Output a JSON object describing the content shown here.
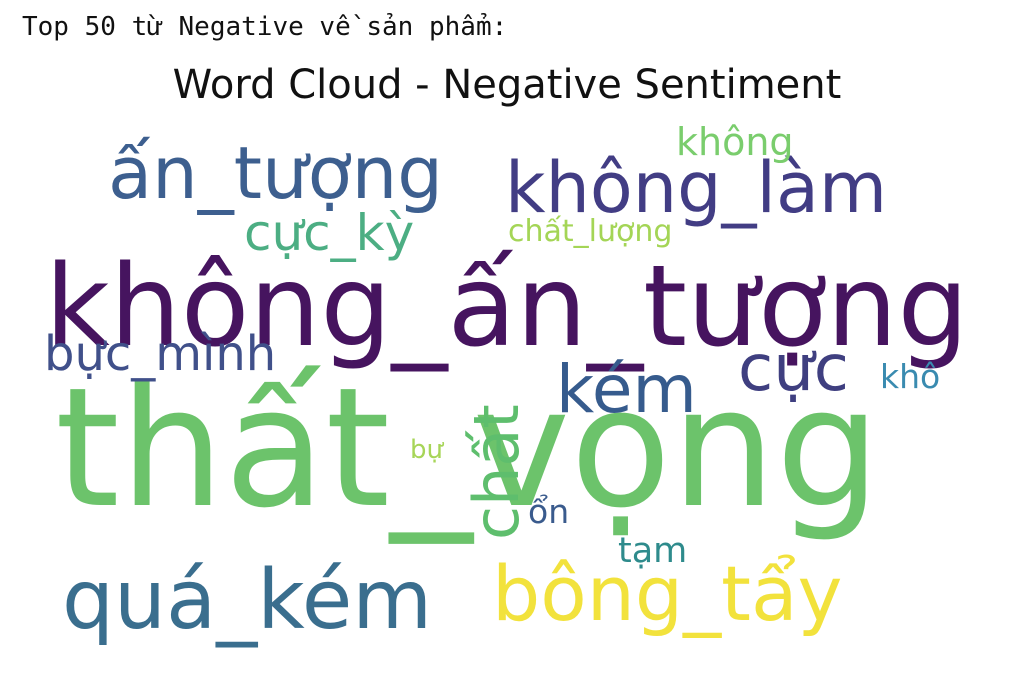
{
  "header": {
    "text": "Top 50 từ Negative về sản phẩm:"
  },
  "chart_data": {
    "type": "wordcloud",
    "title": "Word Cloud - Negative Sentiment",
    "colormap": "viridis",
    "background": "#ffffff",
    "words": [
      {
        "text": "thất_vọng",
        "weight": 1.0,
        "color": "#6cc36b"
      },
      {
        "text": "không_ấn_tượng",
        "weight": 0.8,
        "color": "#46145f"
      },
      {
        "text": "quá_kém",
        "weight": 0.55,
        "color": "#3a6e8e"
      },
      {
        "text": "bông_tẩy",
        "weight": 0.52,
        "color": "#f2e23c"
      },
      {
        "text": "ấn_tượng",
        "weight": 0.5,
        "color": "#3d5f8f"
      },
      {
        "text": "không_làm",
        "weight": 0.48,
        "color": "#423d84"
      },
      {
        "text": "kém",
        "weight": 0.45,
        "color": "#365b8d"
      },
      {
        "text": "cực",
        "weight": 0.44,
        "color": "#3f3f80"
      },
      {
        "text": "chất",
        "weight": 0.4,
        "color": "#5ebe6d"
      },
      {
        "text": "cực_kỳ",
        "weight": 0.35,
        "color": "#4cae83"
      },
      {
        "text": "bực_mình",
        "weight": 0.32,
        "color": "#40508a"
      },
      {
        "text": "không",
        "weight": 0.26,
        "color": "#7acd6d"
      },
      {
        "text": "tạm",
        "weight": 0.22,
        "color": "#2e8b8c"
      },
      {
        "text": "ổn",
        "weight": 0.21,
        "color": "#3a5b8d"
      },
      {
        "text": "khô",
        "weight": 0.2,
        "color": "#3a8bb0"
      },
      {
        "text": "chất_lượng",
        "weight": 0.18,
        "color": "#a4d556"
      },
      {
        "text": "bự",
        "weight": 0.15,
        "color": "#a7d558"
      }
    ]
  }
}
